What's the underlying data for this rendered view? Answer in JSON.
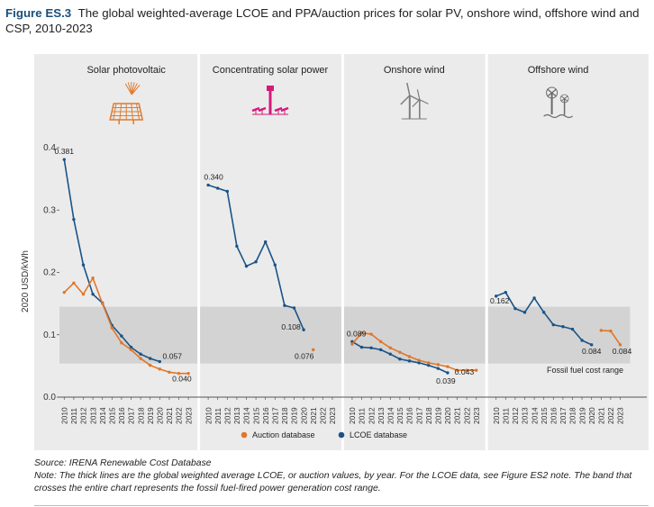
{
  "figure": {
    "label": "Figure ES.3",
    "title": "The global weighted-average LCOE and PPA/auction prices for solar PV, onshore wind, offshore wind and CSP, 2010-2023"
  },
  "colors": {
    "lcoe": "#1a5387",
    "auction": "#e0762a",
    "panel_bg": "#ebebeb",
    "band": "#d3d3d3",
    "icon_pv": "#e07b2e",
    "icon_csp": "#d4197a",
    "icon_wind": "#7d7d7d",
    "icon_offshore": "#6b6b6b"
  },
  "chart_data": {
    "type": "line",
    "ylabel": "2020 USD/kWh",
    "ylim": [
      0,
      0.4
    ],
    "yticks": [
      "0.0",
      "0.1",
      "0.2",
      "0.3",
      "0.4"
    ],
    "band": {
      "low": 0.054,
      "high": 0.145,
      "label": "Fossil fuel cost range"
    },
    "panels": [
      {
        "name": "Solar photovoltaic",
        "icon": "solar-panel-icon",
        "years": [
          "2010",
          "2011",
          "2012",
          "2013",
          "2014",
          "2015",
          "2016",
          "2017",
          "2018",
          "2019",
          "2020",
          "2021",
          "2022",
          "2023"
        ],
        "series": [
          {
            "name": "LCOE database",
            "start": 0,
            "values": [
              0.381,
              0.285,
              0.212,
              0.165,
              0.151,
              0.115,
              0.098,
              0.08,
              0.069,
              0.062,
              0.057
            ]
          },
          {
            "name": "Auction database",
            "start": 0,
            "values": [
              0.168,
              0.183,
              0.165,
              0.191,
              0.15,
              0.111,
              0.087,
              0.076,
              0.062,
              0.051,
              0.045,
              0.04,
              0.038,
              0.038
            ]
          }
        ],
        "labels": [
          {
            "text": "0.381",
            "series": 0,
            "index": 0
          },
          {
            "text": "0.057",
            "series": 0,
            "index": 10
          },
          {
            "text": "0.040",
            "series": 1,
            "index": 11
          }
        ]
      },
      {
        "name": "Concentrating solar power",
        "icon": "csp-tower-icon",
        "years": [
          "2010",
          "2011",
          "2012",
          "2013",
          "2014",
          "2015",
          "2016",
          "2017",
          "2018",
          "2019",
          "2020",
          "2021",
          "2022",
          "2023"
        ],
        "series": [
          {
            "name": "LCOE database",
            "start": 0,
            "values": [
              0.34,
              0.335,
              0.33,
              0.242,
              0.21,
              0.217,
              0.249,
              0.212,
              0.147,
              0.143,
              0.108
            ]
          },
          {
            "name": "Auction database",
            "start": 11,
            "values": [
              0.076
            ]
          }
        ],
        "labels": [
          {
            "text": "0.340",
            "series": 0,
            "index": 0
          },
          {
            "text": "0.108",
            "series": 0,
            "index": 10
          },
          {
            "text": "0.076",
            "series": 1,
            "index": 0
          }
        ]
      },
      {
        "name": "Onshore wind",
        "icon": "wind-turbine-icon",
        "years": [
          "2010",
          "2011",
          "2012",
          "2013",
          "2014",
          "2015",
          "2016",
          "2017",
          "2018",
          "2019",
          "2020",
          "2021",
          "2022",
          "2023"
        ],
        "series": [
          {
            "name": "LCOE database",
            "start": 0,
            "values": [
              0.089,
              0.08,
              0.079,
              0.076,
              0.069,
              0.061,
              0.058,
              0.055,
              0.051,
              0.046,
              0.039
            ]
          },
          {
            "name": "Auction database",
            "start": 0,
            "values": [
              0.085,
              0.103,
              0.101,
              0.089,
              0.079,
              0.072,
              0.065,
              0.059,
              0.055,
              0.052,
              0.049,
              0.043,
              0.043,
              0.043
            ]
          }
        ],
        "labels": [
          {
            "text": "0.089",
            "series": 0,
            "index": 0
          },
          {
            "text": "0.039",
            "series": 0,
            "index": 10
          },
          {
            "text": "0.043",
            "series": 1,
            "index": 11
          }
        ]
      },
      {
        "name": "Offshore wind",
        "icon": "offshore-wind-icon",
        "years": [
          "2010",
          "2011",
          "2012",
          "2013",
          "2014",
          "2015",
          "2016",
          "2017",
          "2018",
          "2019",
          "2020",
          "2021",
          "2022",
          "2023"
        ],
        "series": [
          {
            "name": "LCOE database",
            "start": 0,
            "values": [
              0.162,
              0.168,
              0.142,
              0.136,
              0.159,
              0.136,
              0.116,
              0.113,
              0.109,
              0.091,
              0.084
            ]
          },
          {
            "name": "Auction database",
            "start": 11,
            "values": [
              0.107,
              0.106,
              0.084
            ]
          }
        ],
        "labels": [
          {
            "text": "0.162",
            "series": 0,
            "index": 0
          },
          {
            "text": "0.084",
            "series": 0,
            "index": 10
          },
          {
            "text": "0.084",
            "series": 1,
            "index": 2
          }
        ]
      }
    ],
    "legend": [
      {
        "name": "Auction database",
        "color": "#e0762a"
      },
      {
        "name": "LCOE database",
        "color": "#1a5387"
      }
    ],
    "legend_position": "bottom-center"
  },
  "footer": {
    "source": "Source: IRENA Renewable Cost Database",
    "note": "Note: The thick lines are the global weighted average LCOE, or auction values, by year. For the LCOE data, see Figure ES2 note. The band that crosses the entire chart represents the fossil fuel-fired power generation cost range."
  }
}
